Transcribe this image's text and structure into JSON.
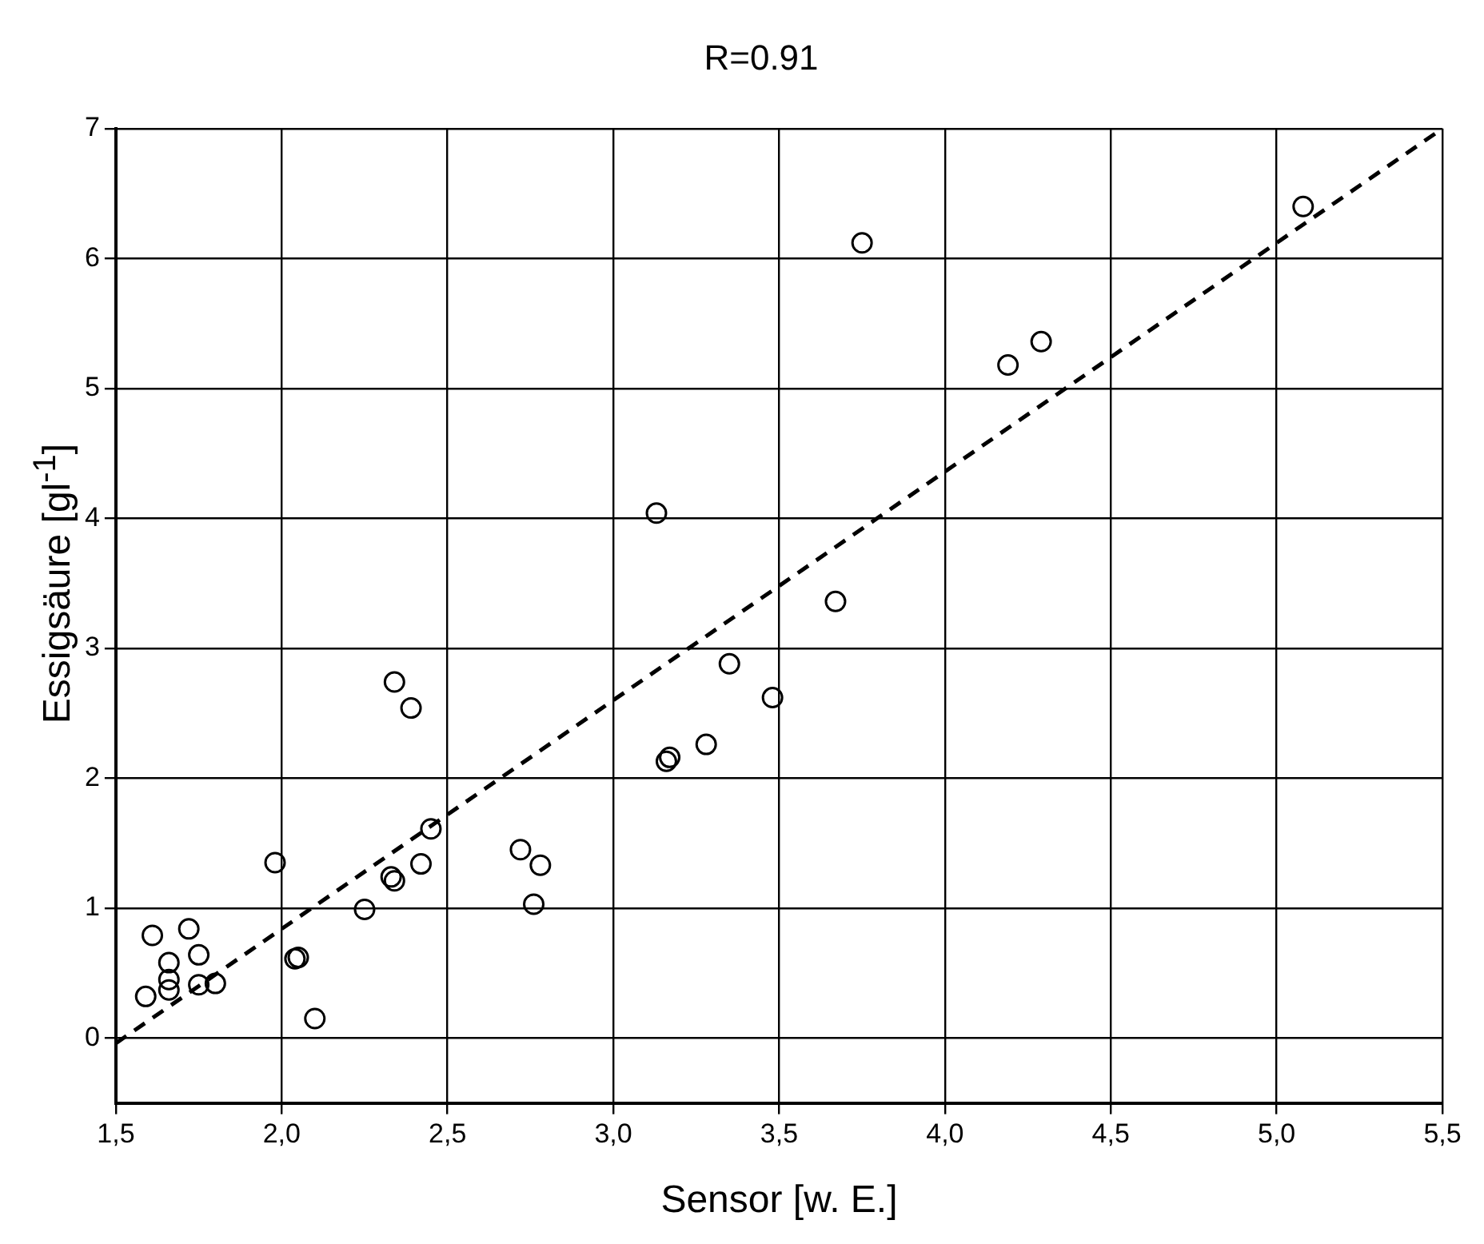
{
  "chart_data": {
    "type": "scatter",
    "title": "R=0.91",
    "xlabel": "Sensor [w. E.]",
    "ylabel": "Essigsäure [gl$^{-1}$]",
    "xlim": [
      1.5,
      5.5
    ],
    "xticks": [
      {
        "value": 1.5,
        "label": "1,5"
      },
      {
        "value": 2.0,
        "label": "2,0"
      },
      {
        "value": 2.5,
        "label": "2,5"
      },
      {
        "value": 3.0,
        "label": "3,0"
      },
      {
        "value": 3.5,
        "label": "3,5"
      },
      {
        "value": 4.0,
        "label": "4,0"
      },
      {
        "value": 4.5,
        "label": "4,5"
      },
      {
        "value": 5.0,
        "label": "5,0"
      },
      {
        "value": 5.5,
        "label": "5,5"
      }
    ],
    "ylim": [
      -0.5,
      7
    ],
    "yticks": [
      0,
      1,
      2,
      3,
      4,
      5,
      6,
      7
    ],
    "grid": true,
    "legend": false,
    "series": [
      {
        "color": "#000000",
        "marker": "circle",
        "x": [
          1.59,
          1.61,
          1.66,
          1.66,
          1.66,
          1.72,
          1.75,
          1.75,
          1.8,
          1.98,
          2.05,
          2.04,
          2.1,
          2.25,
          2.33,
          2.34,
          2.34,
          2.39,
          2.42,
          2.45,
          2.72,
          2.76,
          2.78,
          3.13,
          3.16,
          3.17,
          3.28,
          3.35,
          3.48,
          3.67,
          3.75,
          4.19,
          4.29,
          5.08
        ],
        "values": [
          0.32,
          0.79,
          0.58,
          0.45,
          0.37,
          0.84,
          0.64,
          0.41,
          0.42,
          1.35,
          0.62,
          0.61,
          0.15,
          0.99,
          1.24,
          1.21,
          2.74,
          2.54,
          1.34,
          1.61,
          1.45,
          1.03,
          1.33,
          4.04,
          2.13,
          2.16,
          2.26,
          2.88,
          2.62,
          3.36,
          6.12,
          5.18,
          5.36,
          6.4
        ]
      },
      {
        "type": "line",
        "color": "#000000",
        "marker": "none",
        "line_style": "dashed",
        "x": [
          1.5,
          5.5
        ],
        "values": [
          -0.04,
          7.0
        ]
      }
    ]
  }
}
